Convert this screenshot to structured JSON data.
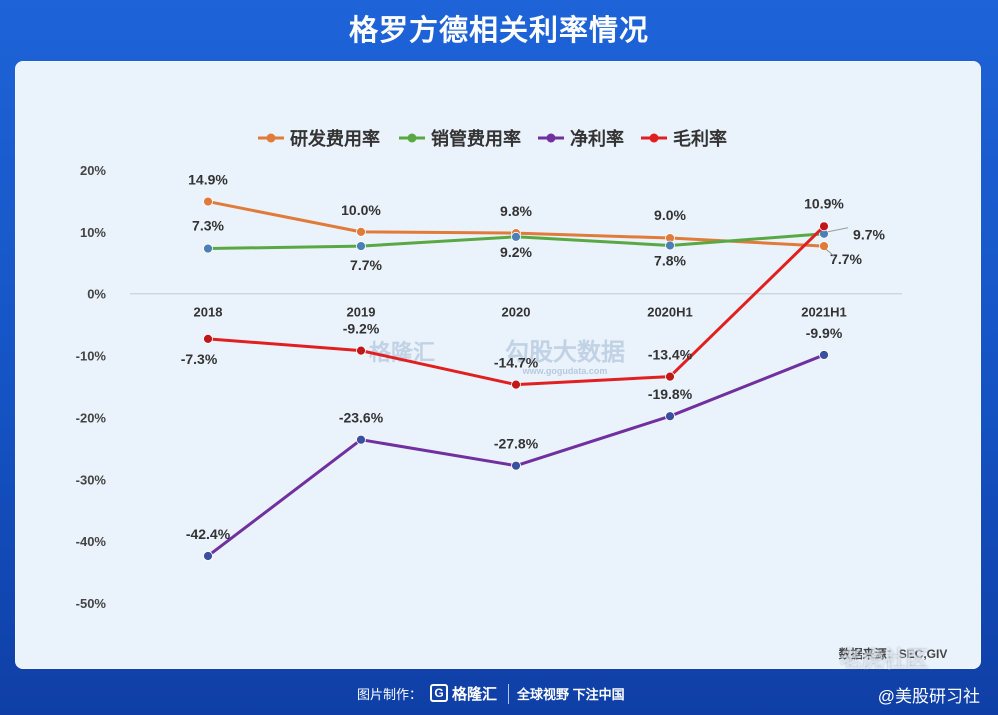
{
  "title": "格罗方德相关利率情况",
  "footer": {
    "credit_label": "图片制作：",
    "brand_name": "格隆汇",
    "slogan": "全球视野 下注中国",
    "handle": "@美股研习社"
  },
  "watermarks": {
    "center_brand": "格隆汇",
    "center_sub": "勾股大数据",
    "center_url": "www.gogudata.com",
    "corner": "老虎社区"
  },
  "source_note": "数据来源：SEC,GIV",
  "colors": {
    "background": "#1a5bd0",
    "panel": "#eaf3fb",
    "rd": "#e07b39",
    "sales": "#5aa843",
    "net": "#7030a0",
    "gross": "#e02020"
  },
  "chart_data": {
    "type": "line",
    "categories": [
      "2018",
      "2019",
      "2020",
      "2020H1",
      "2021H1"
    ],
    "ylim": [
      -50,
      20
    ],
    "yticks": [
      "20%",
      "10%",
      "0%",
      "-10%",
      "-20%",
      "-30%",
      "-40%",
      "-50%"
    ],
    "ytick_values": [
      20,
      10,
      0,
      -10,
      -20,
      -30,
      -40,
      -50
    ],
    "legend_position": "top",
    "grid": false,
    "series": [
      {
        "name": "研发费用率",
        "color": "#e07b39",
        "marker": "#e07b39",
        "values": [
          14.9,
          10.0,
          9.8,
          9.0,
          7.7
        ],
        "labels": [
          "14.9%",
          "10.0%",
          "9.8%",
          "9.0%",
          "7.7%"
        ]
      },
      {
        "name": "销管费用率",
        "color": "#5aa843",
        "marker": "#4a7fb8",
        "values": [
          7.3,
          7.7,
          9.2,
          7.8,
          9.7
        ],
        "labels": [
          "7.3%",
          "7.7%",
          "9.2%",
          "7.8%",
          "9.7%"
        ]
      },
      {
        "name": "净利率",
        "color": "#7030a0",
        "marker": "#3a4fa0",
        "values": [
          -42.4,
          -23.6,
          -27.8,
          -19.8,
          -9.9
        ],
        "labels": [
          "-42.4%",
          "-23.6%",
          "-27.8%",
          "-19.8%",
          "-9.9%"
        ]
      },
      {
        "name": "毛利率",
        "color": "#e02020",
        "marker": "#c01818",
        "values": [
          -7.3,
          -9.2,
          -14.7,
          -13.4,
          10.9
        ],
        "labels": [
          "-7.3%",
          "-9.2%",
          "-14.7%",
          "-13.4%",
          "10.9%"
        ]
      }
    ]
  }
}
